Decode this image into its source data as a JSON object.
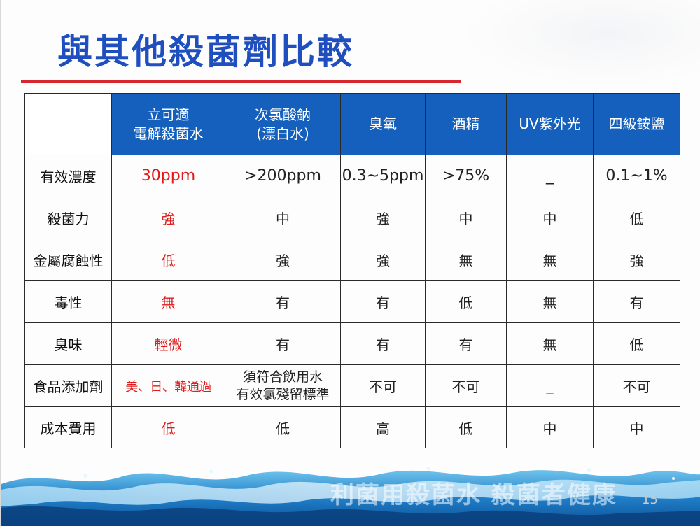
{
  "slide": {
    "title": "與其他殺菌劑比較",
    "watermark": "利菌用殺菌水  殺菌者健康",
    "page_number": "15"
  },
  "table": {
    "headers": [
      "",
      "立可適\n電解殺菌水",
      "次氯酸鈉\n(漂白水)",
      "臭氧",
      "酒精",
      "UV紫外光",
      "四級銨鹽"
    ],
    "rows": [
      {
        "label": "有效濃度",
        "cells": [
          "30ppm",
          ">200ppm",
          "0.3~5ppm",
          ">75%",
          "_",
          "0.1~1%"
        ]
      },
      {
        "label": "殺菌力",
        "cells": [
          "強",
          "中",
          "強",
          "中",
          "中",
          "低"
        ]
      },
      {
        "label": "金屬腐蝕性",
        "cells": [
          "低",
          "強",
          "強",
          "無",
          "無",
          "強"
        ]
      },
      {
        "label": "毒性",
        "cells": [
          "無",
          "有",
          "有",
          "低",
          "無",
          "有"
        ]
      },
      {
        "label": "臭味",
        "cells": [
          "輕微",
          "有",
          "有",
          "有",
          "無",
          "低"
        ]
      },
      {
        "label": "食品添加劑",
        "cells": [
          "美、日、韓通過",
          "須符合飲用水\n有效氯殘留標準",
          "不可",
          "不可",
          "_",
          "不可"
        ]
      },
      {
        "label": "成本費用",
        "cells": [
          "低",
          "低",
          "高",
          "低",
          "中",
          "中"
        ]
      }
    ]
  },
  "colors": {
    "title": "#1f4fbf",
    "rule": "#d8262f",
    "header_bg": "#1560bd",
    "highlight": "#e11b1b"
  }
}
